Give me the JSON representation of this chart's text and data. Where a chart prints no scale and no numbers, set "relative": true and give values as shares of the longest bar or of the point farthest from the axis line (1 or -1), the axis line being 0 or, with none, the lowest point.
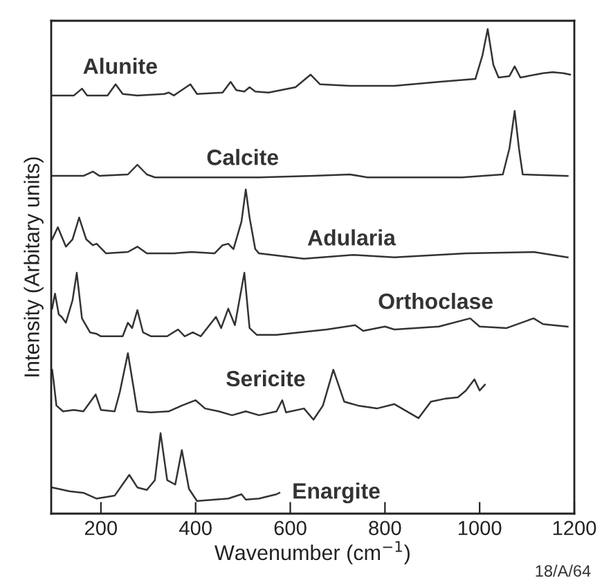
{
  "chart_data": {
    "type": "line",
    "relative": true,
    "xlabel": "Wavenumber (cm$^{−1}$)",
    "ylabel": "Intensity (Arbitary units)",
    "xlim": [
      95,
      1200
    ],
    "xticks": [
      200,
      400,
      600,
      800,
      1000,
      1200
    ],
    "grid": false,
    "legend": false,
    "marker": "none",
    "line_style": "solid",
    "annotations": [
      "18/A/64"
    ],
    "series": [
      {
        "name": "Alunite",
        "color": "#333333",
        "x": [
          97,
          143,
          160,
          171,
          214,
          231,
          246,
          277,
          334,
          343,
          354,
          389,
          403,
          457,
          474,
          486,
          503,
          514,
          526,
          554,
          611,
          643,
          663,
          726,
          820,
          914,
          991,
          1006,
          1017,
          1029,
          1040,
          1063,
          1074,
          1086,
          1134,
          1154,
          1177,
          1191
        ],
        "values": [
          0.863,
          0.863,
          0.877,
          0.863,
          0.863,
          0.886,
          0.866,
          0.863,
          0.866,
          0.869,
          0.863,
          0.886,
          0.866,
          0.869,
          0.891,
          0.874,
          0.871,
          0.88,
          0.871,
          0.869,
          0.88,
          0.906,
          0.886,
          0.883,
          0.883,
          0.891,
          0.897,
          0.946,
          1.0,
          0.926,
          0.9,
          0.903,
          0.923,
          0.9,
          0.909,
          0.911,
          0.909,
          0.906
        ]
      },
      {
        "name": "Calcite",
        "color": "#333333",
        "x": [
          97,
          163,
          183,
          197,
          257,
          277,
          297,
          314,
          534,
          649,
          726,
          763,
          963,
          1049,
          1063,
          1074,
          1083,
          1091,
          1186
        ],
        "values": [
          0.697,
          0.697,
          0.706,
          0.697,
          0.7,
          0.72,
          0.7,
          0.694,
          0.694,
          0.697,
          0.7,
          0.694,
          0.694,
          0.7,
          0.754,
          0.831,
          0.754,
          0.7,
          0.697
        ]
      },
      {
        "name": "Adularia",
        "color": "#333333",
        "x": [
          97,
          109,
          126,
          140,
          154,
          169,
          183,
          191,
          211,
          257,
          277,
          297,
          354,
          391,
          440,
          457,
          469,
          480,
          497,
          506,
          514,
          526,
          534,
          629,
          734,
          820,
          971,
          1114,
          1186
        ],
        "values": [
          0.566,
          0.591,
          0.551,
          0.566,
          0.611,
          0.566,
          0.554,
          0.557,
          0.537,
          0.54,
          0.551,
          0.537,
          0.537,
          0.54,
          0.537,
          0.554,
          0.557,
          0.546,
          0.603,
          0.669,
          0.611,
          0.546,
          0.537,
          0.526,
          0.534,
          0.529,
          0.537,
          0.54,
          0.529
        ]
      },
      {
        "name": "Orthoclase",
        "color": "#333333",
        "x": [
          97,
          103,
          111,
          117,
          126,
          140,
          149,
          160,
          177,
          191,
          200,
          246,
          257,
          266,
          277,
          289,
          306,
          323,
          340,
          363,
          377,
          394,
          411,
          443,
          454,
          469,
          483,
          503,
          514,
          529,
          571,
          677,
          737,
          754,
          800,
          820,
          914,
          980,
          1000,
          1057,
          1114,
          1134,
          1186
        ],
        "values": [
          0.423,
          0.454,
          0.411,
          0.406,
          0.394,
          0.44,
          0.497,
          0.403,
          0.374,
          0.371,
          0.366,
          0.366,
          0.394,
          0.383,
          0.42,
          0.374,
          0.366,
          0.366,
          0.366,
          0.38,
          0.366,
          0.374,
          0.366,
          0.406,
          0.383,
          0.423,
          0.389,
          0.497,
          0.383,
          0.369,
          0.369,
          0.38,
          0.389,
          0.377,
          0.386,
          0.38,
          0.386,
          0.403,
          0.386,
          0.383,
          0.403,
          0.391,
          0.386
        ]
      },
      {
        "name": "Sericite",
        "color": "#333333",
        "x": [
          97,
          100,
          106,
          120,
          143,
          163,
          189,
          200,
          229,
          240,
          257,
          269,
          277,
          306,
          343,
          371,
          400,
          420,
          449,
          477,
          506,
          534,
          571,
          583,
          591,
          629,
          649,
          669,
          691,
          714,
          743,
          783,
          820,
          871,
          897,
          926,
          954,
          971,
          989,
          1000,
          1011
        ],
        "values": [
          0.297,
          0.274,
          0.223,
          0.211,
          0.214,
          0.211,
          0.246,
          0.214,
          0.211,
          0.251,
          0.331,
          0.26,
          0.211,
          0.209,
          0.211,
          0.223,
          0.234,
          0.217,
          0.211,
          0.203,
          0.211,
          0.203,
          0.211,
          0.234,
          0.209,
          0.217,
          0.194,
          0.223,
          0.297,
          0.231,
          0.223,
          0.217,
          0.226,
          0.197,
          0.231,
          0.237,
          0.24,
          0.254,
          0.277,
          0.254,
          0.266
        ]
      },
      {
        "name": "Enargite",
        "color": "#333333",
        "x": [
          97,
          134,
          163,
          191,
          229,
          260,
          277,
          297,
          314,
          326,
          340,
          357,
          371,
          386,
          403,
          469,
          497,
          506,
          534,
          571,
          577
        ],
        "values": [
          0.054,
          0.046,
          0.043,
          0.031,
          0.037,
          0.08,
          0.054,
          0.049,
          0.069,
          0.166,
          0.069,
          0.06,
          0.131,
          0.051,
          0.026,
          0.031,
          0.04,
          0.029,
          0.031,
          0.04,
          0.043
        ]
      }
    ]
  }
}
